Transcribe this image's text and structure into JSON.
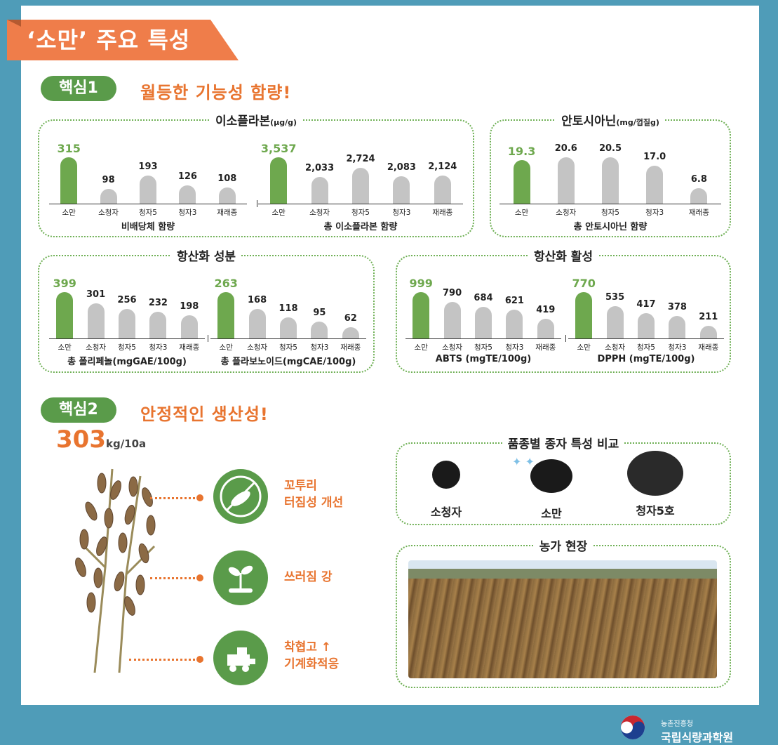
{
  "title": "‘소만’ 주요 특성",
  "core1": {
    "pill": "핵심1",
    "heading": "월등한 기능성 함량!"
  },
  "core2": {
    "pill": "핵심2",
    "heading": "안정적인 생산성!"
  },
  "panels": {
    "isoflavone": {
      "title": "이소플라본",
      "unit": "(μg/g)"
    },
    "anthocyanin": {
      "title": "안토시아닌",
      "unit": "(mg/껍질g)"
    },
    "antiox_comp": {
      "title": "항산화 성분"
    },
    "antiox_act": {
      "title": "항산화 활성"
    },
    "seed": {
      "title": "품종별 종자 특성 비교"
    },
    "field": {
      "title": "농가 현장"
    }
  },
  "chart_data": [
    {
      "type": "bar",
      "title": "비배당체 함량",
      "categories": [
        "소만",
        "소청자",
        "청자5",
        "청자3",
        "재래종"
      ],
      "values": [
        315,
        98,
        193,
        126,
        108
      ],
      "value_labels": [
        "315",
        "98",
        "193",
        "126",
        "108"
      ],
      "highlight": 0
    },
    {
      "type": "bar",
      "title": "총 이소플라본 함량",
      "categories": [
        "소만",
        "소청자",
        "청자5",
        "청자3",
        "재래종"
      ],
      "values": [
        3537,
        2033,
        2724,
        2083,
        2124
      ],
      "value_labels": [
        "3,537",
        "2,033",
        "2,724",
        "2,083",
        "2,124"
      ],
      "highlight": 0
    },
    {
      "type": "bar",
      "title": "총 안토시아닌 함량",
      "categories": [
        "소만",
        "소청자",
        "청자5",
        "청자3",
        "재래종"
      ],
      "values": [
        19.3,
        20.6,
        20.5,
        17.0,
        6.8
      ],
      "value_labels": [
        "19.3",
        "20.6",
        "20.5",
        "17.0",
        "6.8"
      ],
      "highlight": 0
    },
    {
      "type": "bar",
      "title": "총 폴리페놀(mgGAE/100g)",
      "categories": [
        "소만",
        "소청자",
        "청자5",
        "청자3",
        "재래종"
      ],
      "values": [
        399,
        301,
        256,
        232,
        198
      ],
      "value_labels": [
        "399",
        "301",
        "256",
        "232",
        "198"
      ],
      "highlight": 0
    },
    {
      "type": "bar",
      "title": "총 플라보노이드(mgCAE/100g)",
      "categories": [
        "소만",
        "소청자",
        "청자5",
        "청자3",
        "재래종"
      ],
      "values": [
        263,
        168,
        118,
        95,
        62
      ],
      "value_labels": [
        "263",
        "168",
        "118",
        "95",
        "62"
      ],
      "highlight": 0
    },
    {
      "type": "bar",
      "title": "ABTS (mgTE/100g)",
      "categories": [
        "소만",
        "소청자",
        "청자5",
        "청자3",
        "재래종"
      ],
      "values": [
        999,
        790,
        684,
        621,
        419
      ],
      "value_labels": [
        "999",
        "790",
        "684",
        "621",
        "419"
      ],
      "highlight": 0
    },
    {
      "type": "bar",
      "title": "DPPH (mgTE/100g)",
      "categories": [
        "소만",
        "소청자",
        "청자5",
        "청자3",
        "재래종"
      ],
      "values": [
        770,
        535,
        417,
        378,
        211
      ],
      "value_labels": [
        "770",
        "535",
        "417",
        "378",
        "211"
      ],
      "highlight": 0
    }
  ],
  "yield": {
    "value": "303",
    "unit": "kg/10a"
  },
  "features": [
    {
      "line1": "꼬투리",
      "line2": "터짐성 개선",
      "icon": "pod-icon"
    },
    {
      "line1": "쓰러짐 강",
      "line2": "",
      "icon": "sprout-icon"
    },
    {
      "line1": "착협고 ↑",
      "line2": "기계화적응",
      "icon": "harvester-icon"
    }
  ],
  "seeds": [
    "소청자",
    "소만",
    "청자5호"
  ],
  "logo": {
    "org_small": "농촌진흥청",
    "org_large": "국립식량과학원"
  },
  "colors": {
    "accent": "#e8742f",
    "green": "#5a9b4a",
    "bar_highlight": "#6ea84e",
    "bar": "#c4c4c4",
    "frame": "#4f9cb8"
  }
}
